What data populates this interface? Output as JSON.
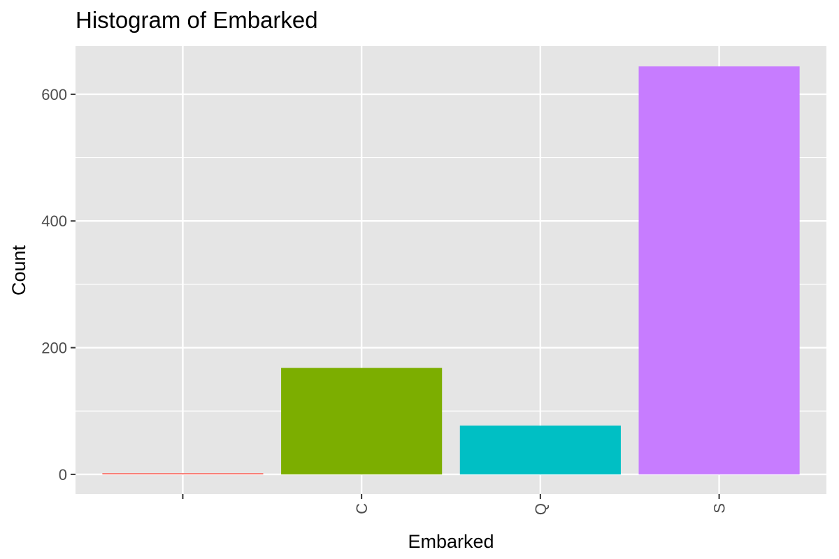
{
  "chart_data": {
    "type": "bar",
    "title": "Histogram of Embarked",
    "xlabel": "Embarked",
    "ylabel": "Count",
    "categories": [
      "",
      "C",
      "Q",
      "S"
    ],
    "values": [
      2,
      168,
      77,
      644
    ],
    "colors": [
      "#F8766D",
      "#7CAE00",
      "#00BFC4",
      "#C77CFF"
    ],
    "ylim": [
      -31,
      676
    ],
    "yticks": [
      0,
      200,
      400,
      600
    ],
    "y_minor_ticks": [
      100,
      300,
      500
    ],
    "x_tick_rotation": "vertical",
    "grid": true,
    "panel_background": "#E5E5E5",
    "legend": "none"
  }
}
